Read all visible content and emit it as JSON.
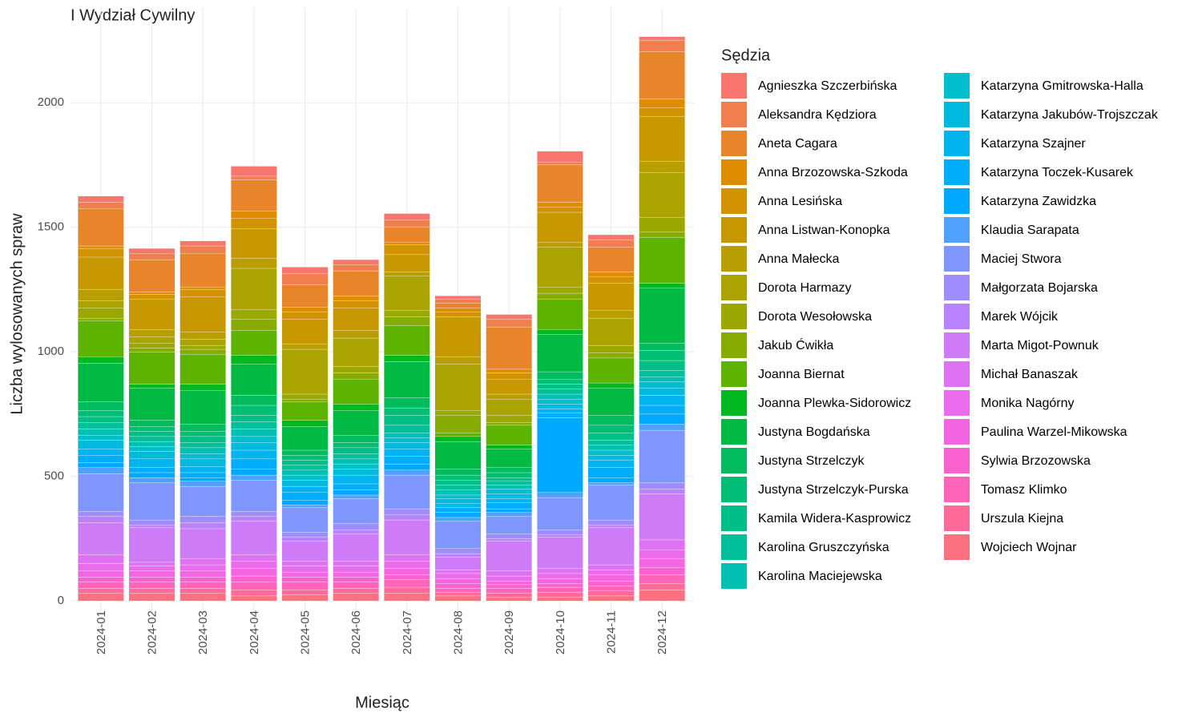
{
  "chart_data": {
    "type": "stacked_bar",
    "title": "I Wydział Cywilny",
    "x_label": "Miesiąc",
    "y_label": "Liczba wylosowanych spraw",
    "legend_title": "Sędzia",
    "categories": [
      "2024-01",
      "2024-02",
      "2024-03",
      "2024-04",
      "2024-05",
      "2024-06",
      "2024-07",
      "2024-08",
      "2024-09",
      "2024-10",
      "2024-11",
      "2024-12"
    ],
    "ylim": [
      -80,
      2380
    ],
    "yticks": [
      0,
      500,
      1000,
      1500,
      2000
    ],
    "grid": true,
    "legend_position": "right",
    "series": [
      {
        "name": "Agnieszka Szczerbińska",
        "color": "#F8766D",
        "values": [
          25,
          20,
          20,
          40,
          25,
          20,
          25,
          15,
          20,
          45,
          20,
          15
        ]
      },
      {
        "name": "Aleksandra Kędziora",
        "color": "#F17E4F",
        "values": [
          25,
          25,
          30,
          15,
          45,
          25,
          30,
          15,
          30,
          10,
          30,
          45
        ]
      },
      {
        "name": "Aneta Cagara",
        "color": "#E8852B",
        "values": [
          150,
          130,
          135,
          125,
          90,
          100,
          60,
          20,
          170,
          150,
          100,
          190
        ]
      },
      {
        "name": "Anna Brzozowska-Szkoda",
        "color": "#DE8C00",
        "values": [
          10,
          10,
          10,
          30,
          20,
          20,
          10,
          15,
          15,
          20,
          20,
          35
        ]
      },
      {
        "name": "Anna Lesińska",
        "color": "#D39200",
        "values": [
          35,
          20,
          30,
          40,
          30,
          30,
          40,
          20,
          25,
          20,
          25,
          35
        ]
      },
      {
        "name": "Anna Listwan-Konopka",
        "color": "#C79800",
        "values": [
          130,
          120,
          140,
          120,
          100,
          90,
          70,
          160,
          60,
          120,
          110,
          180
        ]
      },
      {
        "name": "Anna Małecka",
        "color": "#B99E00",
        "values": [
          45,
          30,
          30,
          40,
          20,
          30,
          15,
          30,
          20,
          20,
          30,
          45
        ]
      },
      {
        "name": "Dorota Harmazy",
        "color": "#AAA300",
        "values": [
          30,
          25,
          25,
          165,
          180,
          115,
          140,
          185,
          65,
          160,
          110,
          180
        ]
      },
      {
        "name": "Dorota Wesołowska",
        "color": "#9AA800",
        "values": [
          40,
          20,
          15,
          40,
          20,
          25,
          25,
          20,
          30,
          25,
          30,
          60
        ]
      },
      {
        "name": "Jakub Ćwikła",
        "color": "#86AC00",
        "values": [
          10,
          15,
          20,
          45,
          10,
          25,
          35,
          70,
          10,
          25,
          20,
          20
        ]
      },
      {
        "name": "Joanna Biernat",
        "color": "#5DB300",
        "values": [
          145,
          130,
          120,
          100,
          75,
          100,
          120,
          15,
          80,
          120,
          100,
          185
        ]
      },
      {
        "name": "Joanna Plewka-Sidorowicz",
        "color": "#00B81F",
        "values": [
          25,
          15,
          25,
          35,
          25,
          25,
          25,
          20,
          15,
          20,
          20,
          20
        ]
      },
      {
        "name": "Justyna Bogdańska",
        "color": "#00BA44",
        "values": [
          155,
          130,
          135,
          125,
          95,
          100,
          145,
          110,
          75,
          150,
          110,
          220
        ]
      },
      {
        "name": "Justyna Strzelczyk",
        "color": "#00BC5E",
        "values": [
          35,
          25,
          30,
          40,
          20,
          30,
          40,
          25,
          20,
          30,
          40,
          30
        ]
      },
      {
        "name": "Justyna Strzelczyk-Purska",
        "color": "#00BE73",
        "values": [
          25,
          20,
          20,
          40,
          20,
          20,
          30,
          20,
          20,
          20,
          30,
          40
        ]
      },
      {
        "name": "Kamila Widera-Kasprowicz",
        "color": "#00BF86",
        "values": [
          25,
          20,
          25,
          25,
          20,
          25,
          40,
          20,
          15,
          20,
          30,
          40
        ]
      },
      {
        "name": "Karolina Gruszczyńska",
        "color": "#00C09A",
        "values": [
          25,
          20,
          20,
          30,
          20,
          20,
          30,
          20,
          15,
          20,
          20,
          25
        ]
      },
      {
        "name": "Karolina Maciejewska",
        "color": "#00C0B3",
        "values": [
          25,
          20,
          25,
          30,
          20,
          20,
          20,
          20,
          15,
          20,
          20,
          20
        ]
      },
      {
        "name": "Katarzyna Gmitrowska-Halla",
        "color": "#00BECB",
        "values": [
          20,
          20,
          20,
          25,
          20,
          20,
          20,
          15,
          20,
          20,
          20,
          25
        ]
      },
      {
        "name": "Katarzyna Jakubów-Trojszczak",
        "color": "#00BADE",
        "values": [
          35,
          30,
          30,
          30,
          25,
          25,
          25,
          20,
          20,
          20,
          20,
          30
        ]
      },
      {
        "name": "Katarzyna Szajner",
        "color": "#00B4EF",
        "values": [
          25,
          35,
          25,
          35,
          25,
          35,
          30,
          15,
          15,
          15,
          30,
          40
        ]
      },
      {
        "name": "Katarzyna Toczek-Kusarek",
        "color": "#00ADFA",
        "values": [
          30,
          20,
          20,
          40,
          30,
          25,
          30,
          20,
          25,
          20,
          40,
          35
        ]
      },
      {
        "name": "Katarzyna Zawidzka",
        "color": "#00A8FF",
        "values": [
          20,
          20,
          15,
          25,
          20,
          20,
          25,
          20,
          15,
          300,
          20,
          40
        ]
      },
      {
        "name": "Klaudia Sarapata",
        "color": "#4FA0FF",
        "values": [
          25,
          20,
          20,
          20,
          10,
          15,
          20,
          15,
          15,
          20,
          10,
          25
        ]
      },
      {
        "name": "Maciej Stwora",
        "color": "#7F96FF",
        "values": [
          150,
          150,
          120,
          125,
          100,
          100,
          135,
          110,
          70,
          130,
          140,
          210
        ]
      },
      {
        "name": "Małgorzata Bojarska",
        "color": "#9F8CFF",
        "values": [
          20,
          20,
          25,
          20,
          20,
          25,
          25,
          20,
          20,
          20,
          20,
          25
        ]
      },
      {
        "name": "Marek Wójcik",
        "color": "#B983FF",
        "values": [
          25,
          10,
          25,
          20,
          15,
          15,
          20,
          15,
          10,
          10,
          10,
          20
        ]
      },
      {
        "name": "Marta Migot-Pownuk",
        "color": "#CE7BF8",
        "values": [
          130,
          140,
          120,
          135,
          80,
          110,
          140,
          50,
          120,
          125,
          150,
          185
        ]
      },
      {
        "name": "Michał Banaszak",
        "color": "#DE72F3",
        "values": [
          35,
          15,
          25,
          25,
          20,
          20,
          25,
          15,
          20,
          20,
          20,
          40
        ]
      },
      {
        "name": "Monika Nagórny",
        "color": "#EA6BEC",
        "values": [
          30,
          20,
          25,
          30,
          25,
          25,
          30,
          20,
          20,
          20,
          20,
          35
        ]
      },
      {
        "name": "Paulina Warzel-Mikowska",
        "color": "#F465E1",
        "values": [
          25,
          25,
          25,
          30,
          20,
          20,
          25,
          20,
          15,
          20,
          25,
          35
        ]
      },
      {
        "name": "Sylwia Brzozowska",
        "color": "#FA62D0",
        "values": [
          20,
          20,
          20,
          25,
          20,
          20,
          20,
          20,
          15,
          15,
          20,
          30
        ]
      },
      {
        "name": "Tomasz Klimko",
        "color": "#FE64B8",
        "values": [
          25,
          25,
          25,
          30,
          30,
          25,
          30,
          15,
          20,
          20,
          20,
          35
        ]
      },
      {
        "name": "Urszula Kiejna",
        "color": "#FF6A9A",
        "values": [
          20,
          20,
          20,
          25,
          20,
          20,
          25,
          15,
          15,
          20,
          20,
          25
        ]
      },
      {
        "name": "Wojciech Wojnar",
        "color": "#FC717F",
        "values": [
          30,
          30,
          30,
          20,
          25,
          30,
          30,
          20,
          15,
          15,
          20,
          45
        ]
      }
    ]
  }
}
